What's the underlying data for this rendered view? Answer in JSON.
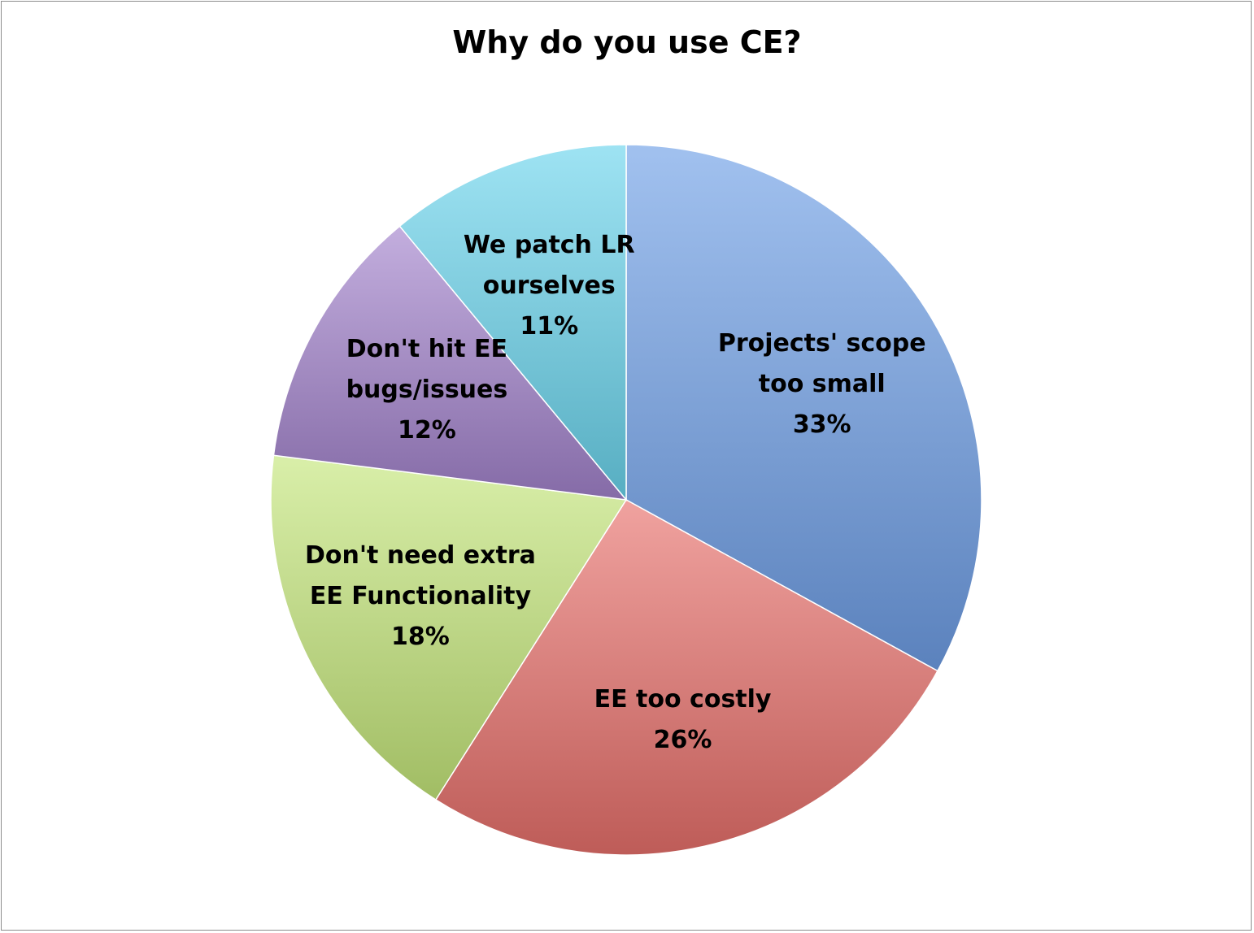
{
  "chart_data": {
    "type": "pie",
    "title": "Why do you use CE?",
    "categories": [
      "Projects' scope too small",
      "EE too costly",
      "Don't need extra EE Functionality",
      "Don't hit EE bugs/issues",
      "We patch LR ourselves"
    ],
    "values": [
      33,
      26,
      18,
      12,
      11
    ],
    "value_labels": [
      "33%",
      "26%",
      "18%",
      "12%",
      "11%"
    ],
    "colors": [
      "#6f9fe6",
      "#e8706b",
      "#c4e67a",
      "#a283cc",
      "#6ad4ec"
    ]
  }
}
